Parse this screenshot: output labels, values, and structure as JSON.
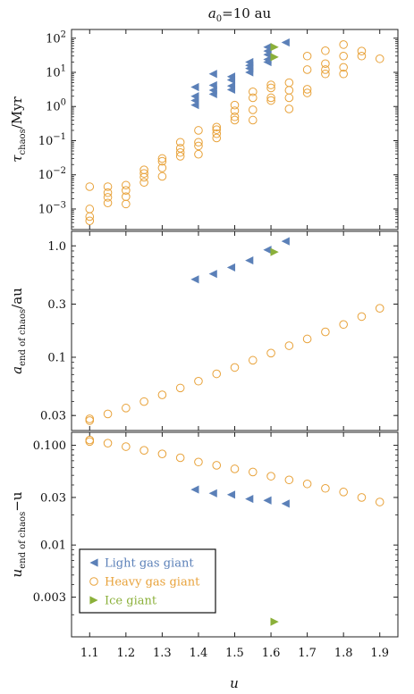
{
  "chart_data": {
    "type": "scatter",
    "title": "a₀=10 au",
    "title_main": "a",
    "title_sub": "0",
    "title_rest": "=10 au",
    "xlabel": "u",
    "xlim": [
      1.05,
      1.95
    ],
    "xticks": [
      "1.1",
      "1.2",
      "1.3",
      "1.4",
      "1.5",
      "1.6",
      "1.7",
      "1.8",
      "1.9"
    ],
    "legend": {
      "placement": "lower-left of bottom panel",
      "entries": [
        {
          "name": "Light gas giant",
          "marker": "triangle-left",
          "color": "#5b80b8"
        },
        {
          "name": "Heavy gas giant",
          "marker": "open-circle",
          "color": "#e8a23a"
        },
        {
          "name": "Ice giant",
          "marker": "triangle-right",
          "color": "#8bb03a"
        }
      ]
    },
    "panels": [
      {
        "id": "tau",
        "ylabel_main": "τ",
        "ylabel_sub": "chaos",
        "ylabel_rest": "/Myr",
        "yscale": "log",
        "ylim": [
          0.00025,
          180
        ],
        "yticks": [
          {
            "value": 0.001,
            "base": "10",
            "exp": "−3"
          },
          {
            "value": 0.01,
            "base": "10",
            "exp": "−2"
          },
          {
            "value": 0.1,
            "base": "10",
            "exp": "−1"
          },
          {
            "value": 1,
            "base": "10",
            "exp": "0"
          },
          {
            "value": 10,
            "base": "10",
            "exp": "1"
          },
          {
            "value": 100,
            "base": "10",
            "exp": "2"
          }
        ],
        "series": [
          {
            "name": "Light gas giant",
            "points": [
              [
                1.39,
                3.7
              ],
              [
                1.39,
                2.0
              ],
              [
                1.39,
                1.5
              ],
              [
                1.39,
                1.1
              ],
              [
                1.44,
                9.0
              ],
              [
                1.44,
                4.2
              ],
              [
                1.44,
                3.0
              ],
              [
                1.44,
                2.3
              ],
              [
                1.49,
                7.5
              ],
              [
                1.49,
                6.0
              ],
              [
                1.49,
                4.0
              ],
              [
                1.49,
                3.1
              ],
              [
                1.54,
                20
              ],
              [
                1.54,
                16
              ],
              [
                1.54,
                13
              ],
              [
                1.54,
                10
              ],
              [
                1.59,
                55
              ],
              [
                1.59,
                42
              ],
              [
                1.59,
                33
              ],
              [
                1.59,
                24
              ],
              [
                1.59,
                20
              ],
              [
                1.64,
                75
              ]
            ]
          },
          {
            "name": "Heavy gas giant",
            "points": [
              [
                1.1,
                0.0045
              ],
              [
                1.1,
                0.001
              ],
              [
                1.1,
                0.0006
              ],
              [
                1.1,
                0.00045
              ],
              [
                1.15,
                0.0045
              ],
              [
                1.15,
                0.003
              ],
              [
                1.15,
                0.0022
              ],
              [
                1.15,
                0.0015
              ],
              [
                1.2,
                0.005
              ],
              [
                1.2,
                0.0035
              ],
              [
                1.2,
                0.0023
              ],
              [
                1.2,
                0.0014
              ],
              [
                1.25,
                0.014
              ],
              [
                1.25,
                0.011
              ],
              [
                1.25,
                0.0085
              ],
              [
                1.25,
                0.006
              ],
              [
                1.3,
                0.03
              ],
              [
                1.3,
                0.025
              ],
              [
                1.3,
                0.016
              ],
              [
                1.3,
                0.009
              ],
              [
                1.35,
                0.09
              ],
              [
                1.35,
                0.06
              ],
              [
                1.35,
                0.045
              ],
              [
                1.35,
                0.035
              ],
              [
                1.4,
                0.2
              ],
              [
                1.4,
                0.09
              ],
              [
                1.4,
                0.07
              ],
              [
                1.4,
                0.04
              ],
              [
                1.45,
                0.25
              ],
              [
                1.45,
                0.21
              ],
              [
                1.45,
                0.16
              ],
              [
                1.45,
                0.12
              ],
              [
                1.5,
                1.1
              ],
              [
                1.5,
                0.75
              ],
              [
                1.5,
                0.5
              ],
              [
                1.5,
                0.4
              ],
              [
                1.55,
                2.7
              ],
              [
                1.55,
                1.8
              ],
              [
                1.55,
                0.8
              ],
              [
                1.55,
                0.4
              ],
              [
                1.6,
                4.3
              ],
              [
                1.6,
                3.5
              ],
              [
                1.6,
                1.8
              ],
              [
                1.6,
                1.5
              ],
              [
                1.65,
                5.0
              ],
              [
                1.65,
                3.0
              ],
              [
                1.65,
                1.8
              ],
              [
                1.65,
                0.85
              ],
              [
                1.7,
                30
              ],
              [
                1.7,
                12
              ],
              [
                1.7,
                3.2
              ],
              [
                1.7,
                2.5
              ],
              [
                1.75,
                43
              ],
              [
                1.75,
                18
              ],
              [
                1.75,
                12
              ],
              [
                1.75,
                9.0
              ],
              [
                1.8,
                65
              ],
              [
                1.8,
                30
              ],
              [
                1.8,
                14
              ],
              [
                1.8,
                9.0
              ],
              [
                1.85,
                42
              ],
              [
                1.85,
                30
              ],
              [
                1.9,
                25
              ]
            ]
          },
          {
            "name": "Ice giant",
            "points": [
              [
                1.61,
                55
              ],
              [
                1.61,
                28
              ]
            ]
          }
        ]
      },
      {
        "id": "a_end",
        "ylabel_main": "a",
        "ylabel_sub": "end of chaos",
        "ylabel_rest": "/au",
        "yscale": "log",
        "ylim": [
          0.022,
          1.35
        ],
        "yticks": [
          {
            "value": 0.03,
            "label": "0.03"
          },
          {
            "value": 0.1,
            "label": "0.1"
          },
          {
            "value": 0.3,
            "label": "0.3"
          },
          {
            "value": 1.0,
            "label": "1.0"
          }
        ],
        "series": [
          {
            "name": "Light gas giant",
            "points": [
              [
                1.39,
                0.5
              ],
              [
                1.44,
                0.56
              ],
              [
                1.49,
                0.64
              ],
              [
                1.54,
                0.74
              ],
              [
                1.59,
                0.92
              ],
              [
                1.64,
                1.1
              ]
            ]
          },
          {
            "name": "Heavy gas giant",
            "points": [
              [
                1.1,
                0.027
              ],
              [
                1.1,
                0.028
              ],
              [
                1.15,
                0.031
              ],
              [
                1.2,
                0.035
              ],
              [
                1.25,
                0.04
              ],
              [
                1.3,
                0.046
              ],
              [
                1.35,
                0.053
              ],
              [
                1.4,
                0.061
              ],
              [
                1.45,
                0.071
              ],
              [
                1.5,
                0.081
              ],
              [
                1.55,
                0.094
              ],
              [
                1.6,
                0.109
              ],
              [
                1.65,
                0.127
              ],
              [
                1.7,
                0.146
              ],
              [
                1.75,
                0.169
              ],
              [
                1.8,
                0.197
              ],
              [
                1.85,
                0.232
              ],
              [
                1.9,
                0.275
              ]
            ]
          },
          {
            "name": "Ice giant",
            "points": [
              [
                1.61,
                0.88
              ]
            ]
          }
        ]
      },
      {
        "id": "u_end",
        "ylabel_main": "u",
        "ylabel_sub": "end of chaos",
        "ylabel_rest": "−u",
        "yscale": "log",
        "ylim": [
          0.0012,
          0.135
        ],
        "yticks": [
          {
            "value": 0.003,
            "label": "0.003"
          },
          {
            "value": 0.01,
            "label": "0.01"
          },
          {
            "value": 0.03,
            "label": "0.03"
          },
          {
            "value": 0.1,
            "label": "0.100"
          }
        ],
        "series": [
          {
            "name": "Light gas giant",
            "points": [
              [
                1.39,
                0.036
              ],
              [
                1.44,
                0.033
              ],
              [
                1.49,
                0.032
              ],
              [
                1.54,
                0.029
              ],
              [
                1.59,
                0.028
              ],
              [
                1.64,
                0.026
              ]
            ]
          },
          {
            "name": "Heavy gas giant",
            "points": [
              [
                1.1,
                0.109
              ],
              [
                1.1,
                0.113
              ],
              [
                1.15,
                0.105
              ],
              [
                1.2,
                0.097
              ],
              [
                1.25,
                0.089
              ],
              [
                1.3,
                0.082
              ],
              [
                1.35,
                0.075
              ],
              [
                1.4,
                0.068
              ],
              [
                1.45,
                0.063
              ],
              [
                1.5,
                0.058
              ],
              [
                1.55,
                0.054
              ],
              [
                1.6,
                0.049
              ],
              [
                1.65,
                0.045
              ],
              [
                1.7,
                0.041
              ],
              [
                1.75,
                0.037
              ],
              [
                1.8,
                0.034
              ],
              [
                1.85,
                0.03
              ],
              [
                1.9,
                0.027
              ]
            ]
          },
          {
            "name": "Ice giant",
            "points": [
              [
                1.61,
                0.0017
              ]
            ]
          }
        ]
      }
    ]
  }
}
